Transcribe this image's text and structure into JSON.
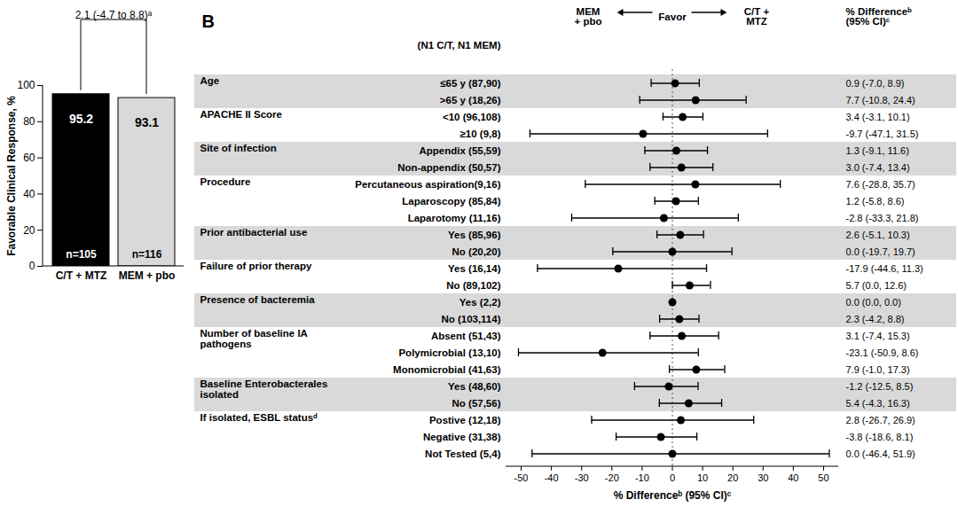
{
  "chart_data": [
    {
      "type": "bar",
      "annotation": "2.1 (-4.7 to 8.8)ᵃ",
      "ylabel": "Favorable Clinical Response, %",
      "categories": [
        "C/T + MTZ",
        "MEM + pbo"
      ],
      "values": [
        95.2,
        93.1
      ],
      "n_labels": [
        "n=105",
        "n=116"
      ],
      "colors": [
        "#000000",
        "#d9d9d9"
      ],
      "data_labels": true,
      "ylim": [
        0,
        100
      ],
      "yticks": [
        0,
        20,
        40,
        60,
        80,
        100
      ]
    },
    {
      "type": "forest",
      "panel_label": "B",
      "column_header": "(N1 C/T, N1 MEM)",
      "favor_label": "Favor",
      "favor_left": "MEM + pbo",
      "favor_right": "C/T + MTZ",
      "ci_column_title": "% Differenceᵇ (95% CI)ᶜ",
      "xlabel": "% Differenceᵇ (95% CI)ᶜ",
      "xlim": [
        -55,
        55
      ],
      "xticks": [
        -50,
        -40,
        -30,
        -20,
        -10,
        0,
        10,
        20,
        30,
        40,
        50
      ],
      "reference_x": 0,
      "groups": [
        {
          "name": "Age",
          "rows": [
            {
              "label": "≤65 y (87,90)",
              "estimate": 0.9,
              "ci_low": -7.0,
              "ci_high": 8.9,
              "ci_label": "0.9 (-7.0, 8.9)"
            },
            {
              "label": ">65 y (18,26)",
              "estimate": 7.7,
              "ci_low": -10.8,
              "ci_high": 24.4,
              "ci_label": "7.7 (-10.8, 24.4)"
            }
          ]
        },
        {
          "name": "APACHE II Score",
          "rows": [
            {
              "label": "<10 (96,108)",
              "estimate": 3.4,
              "ci_low": -3.1,
              "ci_high": 10.1,
              "ci_label": "3.4 (-3.1, 10.1)"
            },
            {
              "label": "≥10 (9,8)",
              "estimate": -9.7,
              "ci_low": -47.1,
              "ci_high": 31.5,
              "ci_label": "-9.7 (-47.1, 31.5)"
            }
          ]
        },
        {
          "name": "Site of infection",
          "rows": [
            {
              "label": "Appendix (55,59)",
              "estimate": 1.3,
              "ci_low": -9.1,
              "ci_high": 11.6,
              "ci_label": "1.3 (-9.1, 11.6)"
            },
            {
              "label": "Non-appendix (50,57)",
              "estimate": 3.0,
              "ci_low": -7.4,
              "ci_high": 13.4,
              "ci_label": "3.0 (-7.4, 13.4)"
            }
          ]
        },
        {
          "name": "Procedure",
          "rows": [
            {
              "label": "Percutaneous aspiration(9,16)",
              "estimate": 7.6,
              "ci_low": -28.8,
              "ci_high": 35.7,
              "ci_label": "7.6 (-28.8, 35.7)"
            },
            {
              "label": "Laparoscopy (85,84)",
              "estimate": 1.2,
              "ci_low": -5.8,
              "ci_high": 8.6,
              "ci_label": "1.2 (-5.8, 8.6)"
            },
            {
              "label": "Laparotomy (11,16)",
              "estimate": -2.8,
              "ci_low": -33.3,
              "ci_high": 21.8,
              "ci_label": "-2.8 (-33.3, 21.8)"
            }
          ]
        },
        {
          "name": "Prior antibacterial use",
          "rows": [
            {
              "label": "Yes (85,96)",
              "estimate": 2.6,
              "ci_low": -5.1,
              "ci_high": 10.3,
              "ci_label": "2.6 (-5.1, 10.3)"
            },
            {
              "label": "No (20,20)",
              "estimate": 0.0,
              "ci_low": -19.7,
              "ci_high": 19.7,
              "ci_label": "0.0 (-19.7, 19.7)"
            }
          ]
        },
        {
          "name": "Failure of prior therapy",
          "rows": [
            {
              "label": "Yes (16,14)",
              "estimate": -17.9,
              "ci_low": -44.6,
              "ci_high": 11.3,
              "ci_label": "-17.9 (-44.6, 11.3)"
            },
            {
              "label": "No (89,102)",
              "estimate": 5.7,
              "ci_low": 0.0,
              "ci_high": 12.6,
              "ci_label": "5.7 (0.0, 12.6)"
            }
          ]
        },
        {
          "name": "Presence of bacteremia",
          "rows": [
            {
              "label": "Yes (2,2)",
              "estimate": 0.0,
              "ci_low": 0.0,
              "ci_high": 0.0,
              "ci_label": "0.0 (0.0, 0.0)"
            },
            {
              "label": "No (103,114)",
              "estimate": 2.3,
              "ci_low": -4.2,
              "ci_high": 8.8,
              "ci_label": "2.3 (-4.2, 8.8)"
            }
          ]
        },
        {
          "name": "Number of baseline IA pathogens",
          "rows": [
            {
              "label": "Absent (51,43)",
              "estimate": 3.1,
              "ci_low": -7.4,
              "ci_high": 15.3,
              "ci_label": "3.1 (-7.4, 15.3)"
            },
            {
              "label": "Polymicrobial (13,10)",
              "estimate": -23.1,
              "ci_low": -50.9,
              "ci_high": 8.6,
              "ci_label": "-23.1 (-50.9, 8.6)"
            },
            {
              "label": "Monomicrobial (41,63)",
              "estimate": 7.9,
              "ci_low": -1.0,
              "ci_high": 17.3,
              "ci_label": "7.9 (-1.0, 17.3)"
            }
          ]
        },
        {
          "name": "Baseline Enterobacterales isolated",
          "rows": [
            {
              "label": "Yes (48,60)",
              "estimate": -1.2,
              "ci_low": -12.5,
              "ci_high": 8.5,
              "ci_label": "-1.2 (-12.5, 8.5)"
            },
            {
              "label": "No (57,56)",
              "estimate": 5.4,
              "ci_low": -4.3,
              "ci_high": 16.3,
              "ci_label": "5.4 (-4.3, 16.3)"
            }
          ]
        },
        {
          "name": "If isolated, ESBL statusᵈ",
          "rows": [
            {
              "label": "Postive (12,18)",
              "estimate": 2.8,
              "ci_low": -26.7,
              "ci_high": 26.9,
              "ci_label": "2.8 (-26.7, 26.9)"
            },
            {
              "label": "Negative (31,38)",
              "estimate": -3.8,
              "ci_low": -18.6,
              "ci_high": 8.1,
              "ci_label": "-3.8 (-18.6, 8.1)"
            },
            {
              "label": "Not Tested (5,4)",
              "estimate": 0.0,
              "ci_low": -46.4,
              "ci_high": 51.9,
              "ci_label": "0.0 (-46.4, 51.9)"
            }
          ]
        }
      ]
    }
  ]
}
